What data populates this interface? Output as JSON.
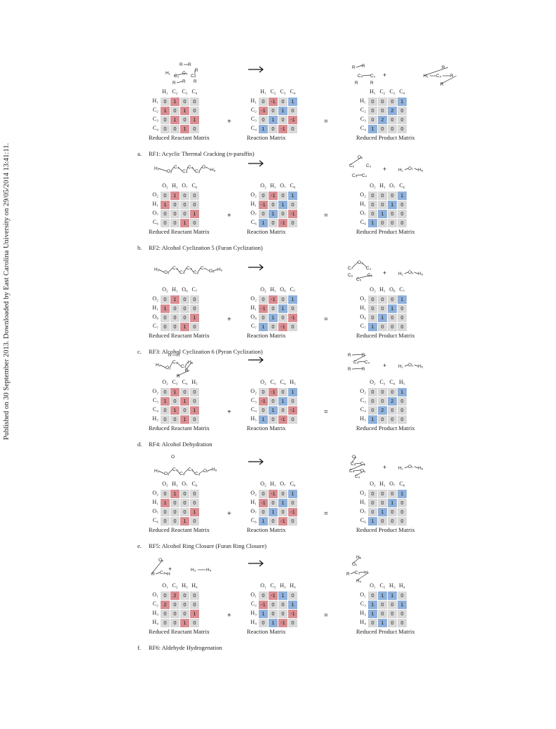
{
  "side_note": "Published on 30 September 2013. Downloaded by East Carolina University on 29/05/2014 13:41:11.",
  "captions": {
    "reactant": "Reduced Reactant Matrix",
    "reaction": "Reaction Matrix",
    "product": "Reduced Product Matrix"
  },
  "operators": {
    "plus": "+",
    "equals": "="
  },
  "panels": [
    {
      "label": "a.",
      "title_pre": "RF1: Acyclic Thermal Cracking (",
      "title_italic": "n",
      "title_post": "-paraffin)",
      "atoms": [
        "H₁",
        "C₂",
        "C₃",
        "C₄"
      ],
      "reactant": [
        [
          0,
          1,
          0,
          0
        ],
        [
          1,
          0,
          1,
          0
        ],
        [
          0,
          1,
          0,
          1
        ],
        [
          0,
          0,
          1,
          0
        ]
      ],
      "reaction": [
        [
          0,
          -1,
          0,
          1
        ],
        [
          -1,
          0,
          1,
          0
        ],
        [
          0,
          1,
          0,
          -1
        ],
        [
          1,
          0,
          -1,
          0
        ]
      ],
      "product": [
        [
          0,
          0,
          0,
          1
        ],
        [
          0,
          0,
          2,
          0
        ],
        [
          0,
          2,
          0,
          0
        ],
        [
          1,
          0,
          0,
          0
        ]
      ],
      "mol_reactant": [
        "R",
        "R",
        "H₁",
        "C₃",
        "C₂",
        "C₄",
        "R",
        "R",
        "R",
        "R"
      ],
      "mol_product1": [
        "R",
        "R",
        "C₂",
        "C₃",
        "R",
        "R"
      ],
      "mol_product2": [
        "R",
        "H₁",
        "C₄",
        "R",
        "R"
      ]
    },
    {
      "label": "b.",
      "title_pre": "RF2: Alcohol Cyclization 5 (Furan Cyclization)",
      "title_italic": "",
      "title_post": "",
      "atoms": [
        "O₂",
        "H₁",
        "O₇",
        "C₆"
      ],
      "reactant": [
        [
          0,
          1,
          0,
          0
        ],
        [
          1,
          0,
          0,
          0
        ],
        [
          0,
          0,
          0,
          1
        ],
        [
          0,
          0,
          1,
          0
        ]
      ],
      "reaction": [
        [
          0,
          -1,
          0,
          1
        ],
        [
          -1,
          0,
          1,
          0
        ],
        [
          0,
          1,
          0,
          -1
        ],
        [
          1,
          0,
          -1,
          0
        ]
      ],
      "product": [
        [
          0,
          0,
          0,
          1
        ],
        [
          0,
          0,
          1,
          0
        ],
        [
          0,
          1,
          0,
          0
        ],
        [
          1,
          0,
          0,
          0
        ]
      ],
      "mol_reactant": [
        "H₁",
        "O₂",
        "C₃",
        "C₄",
        "C₅",
        "C₆",
        "O₇",
        "H₈"
      ],
      "mol_product1": [
        "O₂",
        "C₆",
        "C₃",
        "C₅",
        "C₄"
      ],
      "mol_product2": [
        "H₁",
        "O₇",
        "H₈"
      ]
    },
    {
      "label": "c.",
      "title_pre": "RF3: Alcohol Cyclization 6 (Pyran Cyclization)",
      "title_italic": "",
      "title_post": "",
      "atoms": [
        "O₂",
        "H₁",
        "O₈",
        "C₇"
      ],
      "reactant": [
        [
          0,
          1,
          0,
          0
        ],
        [
          1,
          0,
          0,
          0
        ],
        [
          0,
          0,
          0,
          1
        ],
        [
          0,
          0,
          1,
          0
        ]
      ],
      "reaction": [
        [
          0,
          -1,
          0,
          1
        ],
        [
          -1,
          0,
          1,
          0
        ],
        [
          0,
          1,
          0,
          -1
        ],
        [
          1,
          0,
          -1,
          0
        ]
      ],
      "product": [
        [
          0,
          0,
          0,
          1
        ],
        [
          0,
          0,
          1,
          0
        ],
        [
          0,
          1,
          0,
          0
        ],
        [
          1,
          0,
          0,
          0
        ]
      ],
      "mol_reactant": [
        "H₁",
        "O₂",
        "C₃",
        "C₄",
        "C₅",
        "C₆",
        "C₇",
        "O₈",
        "H₉"
      ],
      "mol_product1": [
        "C₇",
        "O₂",
        "C₃",
        "C₆",
        "C₄",
        "C₅"
      ],
      "mol_product2": [
        "H₁",
        "O₈",
        "H₉"
      ]
    },
    {
      "label": "d.",
      "title_pre": "RF4: Alcohol Dehydration",
      "title_italic": "",
      "title_post": "",
      "atoms": [
        "O₂",
        "C₃",
        "C₄",
        "H₅"
      ],
      "reactant": [
        [
          0,
          1,
          0,
          0
        ],
        [
          1,
          0,
          1,
          0
        ],
        [
          0,
          1,
          0,
          1
        ],
        [
          0,
          0,
          1,
          0
        ]
      ],
      "reaction": [
        [
          0,
          -1,
          0,
          1
        ],
        [
          -1,
          0,
          1,
          0
        ],
        [
          0,
          1,
          0,
          -1
        ],
        [
          1,
          0,
          -1,
          0
        ]
      ],
      "product": [
        [
          0,
          0,
          0,
          1
        ],
        [
          0,
          0,
          2,
          0
        ],
        [
          0,
          2,
          0,
          0
        ],
        [
          1,
          0,
          0,
          0
        ]
      ],
      "mol_reactant": [
        "R",
        "R",
        "H₁",
        "O₂",
        "C₃",
        "C₄",
        "H₅",
        "R",
        "R"
      ],
      "mol_product1": [
        "R",
        "R",
        "C₃",
        "C₄",
        "R",
        "R"
      ],
      "mol_product2": [
        "H₁",
        "O₂",
        "H₅"
      ]
    },
    {
      "label": "e.",
      "title_pre": "RF5: Alcohol Ring Closure (Furan Ring Closure)",
      "title_italic": "",
      "title_post": "",
      "atoms": [
        "O₂",
        "H₁",
        "O₇",
        "C₆"
      ],
      "reactant": [
        [
          0,
          1,
          0,
          0
        ],
        [
          1,
          0,
          0,
          0
        ],
        [
          0,
          0,
          0,
          1
        ],
        [
          0,
          0,
          1,
          0
        ]
      ],
      "reaction": [
        [
          0,
          -1,
          0,
          1
        ],
        [
          -1,
          0,
          1,
          0
        ],
        [
          0,
          1,
          0,
          -1
        ],
        [
          1,
          0,
          -1,
          0
        ]
      ],
      "product": [
        [
          0,
          0,
          0,
          1
        ],
        [
          0,
          0,
          1,
          0
        ],
        [
          0,
          1,
          0,
          0
        ],
        [
          1,
          0,
          0,
          0
        ]
      ],
      "mol_reactant": [
        "O",
        "H₁",
        "O₂",
        "C₃",
        "C₄",
        "C₅",
        "C₆",
        "O₇",
        "H₈"
      ],
      "mol_product1": [
        "O",
        "C₅",
        "C₆",
        "C₄",
        "O₂",
        "C₃"
      ],
      "mol_product2": [
        "H₁",
        "O₇",
        "H₈"
      ]
    },
    {
      "label": "f.",
      "title_pre": "RF6: Aldehyde Hydrogenation",
      "title_italic": "",
      "title_post": "",
      "atoms": [
        "O₁",
        "C₂",
        "H₃",
        "H₄"
      ],
      "reactant": [
        [
          0,
          2,
          0,
          0
        ],
        [
          2,
          0,
          0,
          0
        ],
        [
          0,
          0,
          0,
          1
        ],
        [
          0,
          0,
          1,
          0
        ]
      ],
      "reaction": [
        [
          0,
          -1,
          1,
          0
        ],
        [
          -1,
          0,
          0,
          1
        ],
        [
          1,
          0,
          0,
          -1
        ],
        [
          0,
          1,
          -1,
          0
        ]
      ],
      "product": [
        [
          0,
          1,
          1,
          0
        ],
        [
          1,
          0,
          0,
          1
        ],
        [
          1,
          0,
          0,
          0
        ],
        [
          0,
          1,
          0,
          0
        ]
      ],
      "mol_reactant": [
        "O₁",
        "R",
        "C₂",
        "H"
      ],
      "mol_reactant2": [
        "H₃",
        "H₄"
      ],
      "mol_product1": [
        "H₃",
        "O₁",
        "R",
        "C₂",
        "H",
        "H₄"
      ]
    }
  ]
}
